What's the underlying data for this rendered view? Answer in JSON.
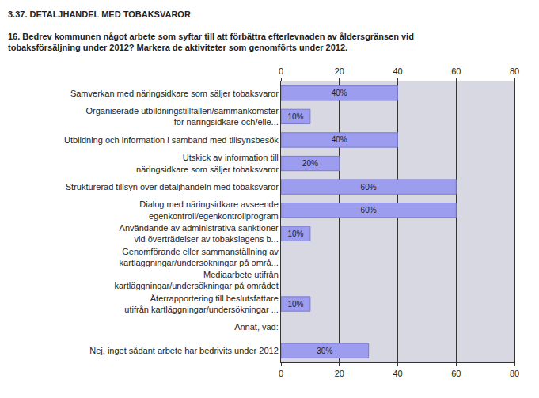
{
  "chart_data": {
    "type": "bar",
    "orientation": "horizontal",
    "title": "3.37. DETALJHANDEL MED TOBAKSVAROR",
    "subtitle": "16. Bedrev kommunen något arbete som syftar till att förbättra efterlevnaden av åldersgränsen vid\ntobaksförsäljning under 2012? Markera de aktiviteter som genomförts under 2012.",
    "categories": [
      "Samverkan med näringsidkare som säljer tobaksvaror",
      "Organiserade utbildningstillfällen/sammankomster\nför näringsidkare och/elle...",
      "Utbildning och information i samband med tillsynsbesök",
      "Utskick av information till\nnäringsidkare som säljer tobaksvaror",
      "Strukturerad tillsyn över detaljhandeln med tobaksvaror",
      "Dialog med näringsidkare avseende\negenkontroll/egenkontrollprogram",
      "Användande av administrativa sanktioner\nvid överträdelser av tobakslagens b...",
      "Genomförande eller sammanställning av\nkartläggningar/undersökningar på områ...",
      "Mediaarbete utifrån\nkartläggningar/undersökningar på området",
      "Återrapportering till beslutsfattare\nutifrån kartläggningar/undersökningar ...",
      "Annat, vad:",
      "Nej, inget sådant arbete har bedrivits under 2012"
    ],
    "values": [
      40,
      10,
      40,
      20,
      60,
      60,
      10,
      null,
      null,
      10,
      null,
      30
    ],
    "value_labels": [
      "40%",
      "10%",
      "40%",
      "20%",
      "60%",
      "60%",
      "10%",
      null,
      null,
      "10%",
      null,
      "30%"
    ],
    "data_labels": true,
    "color": "#9d9df0",
    "xlim": [
      0,
      80
    ],
    "xticks": [
      0,
      20,
      40,
      60,
      80
    ],
    "grid": true
  }
}
